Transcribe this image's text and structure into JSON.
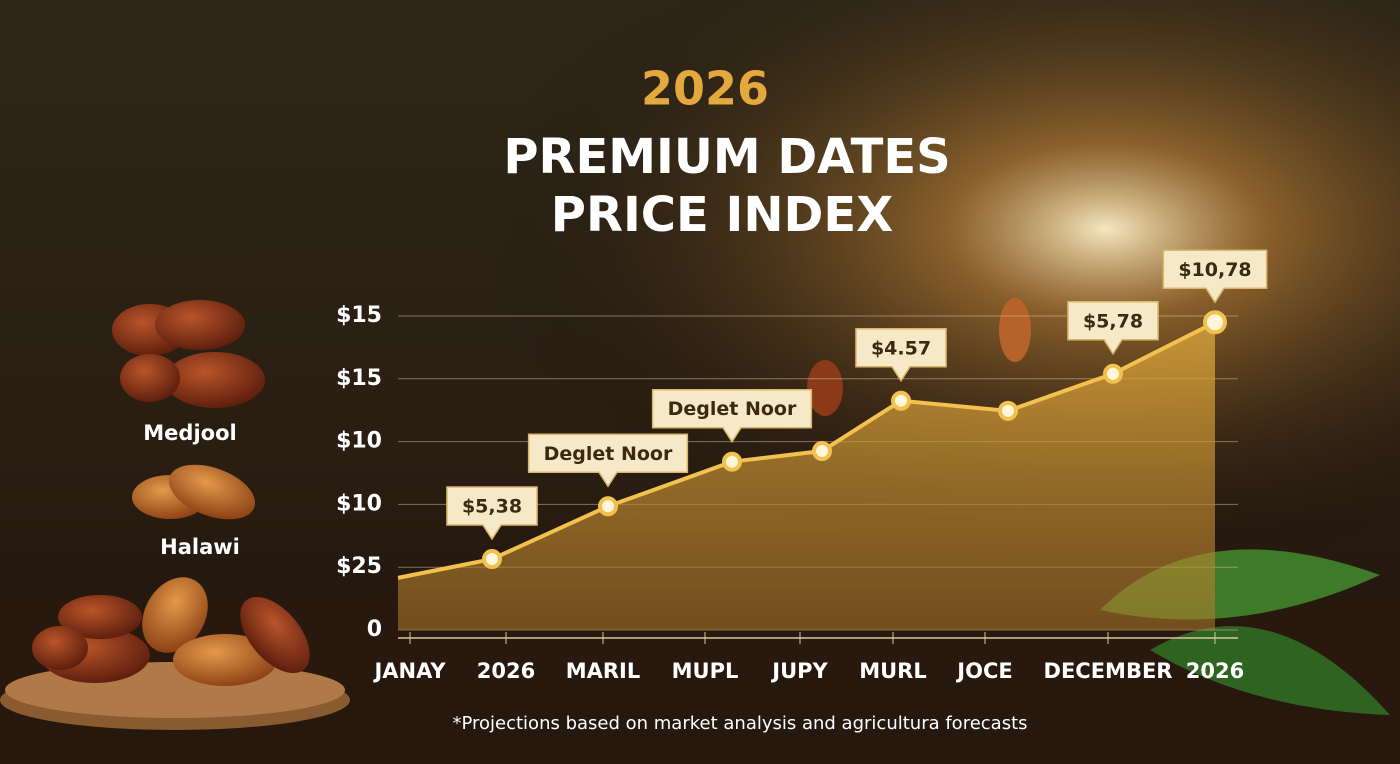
{
  "chart_data": {
    "type": "area",
    "title_year": "2026",
    "title": [
      "PREMIUM DATES",
      "PRICE INDEX"
    ],
    "categories": [
      "JANAY",
      "2026",
      "MARIL",
      "MUPL",
      "JUPY",
      "MURL",
      "JOCE",
      "DECEMBER",
      "2026"
    ],
    "series": [
      {
        "name": "Price index",
        "color": "#f2c14e",
        "values": [
          0.83,
          1.13,
          1.97,
          2.68,
          2.85,
          3.65,
          3.49,
          4.08,
          4.9
        ]
      }
    ],
    "ylim": [
      0,
      5
    ],
    "yticks": [
      {
        "value": 0,
        "label": "0"
      },
      {
        "value": 1,
        "label": "$25"
      },
      {
        "value": 2,
        "label": "$10"
      },
      {
        "value": 3,
        "label": "$10"
      },
      {
        "value": 4,
        "label": "$15"
      },
      {
        "value": 5,
        "label": "$15"
      }
    ],
    "grid": true,
    "callouts": [
      "$5,38",
      "Deglet Noor",
      "Deglet Noor",
      "$4.57",
      "$5,78",
      "$10,78"
    ],
    "varieties": [
      "Medjool",
      "Halawi"
    ],
    "footnote": "*Projections based on market analysis and agricultura forecasts"
  }
}
